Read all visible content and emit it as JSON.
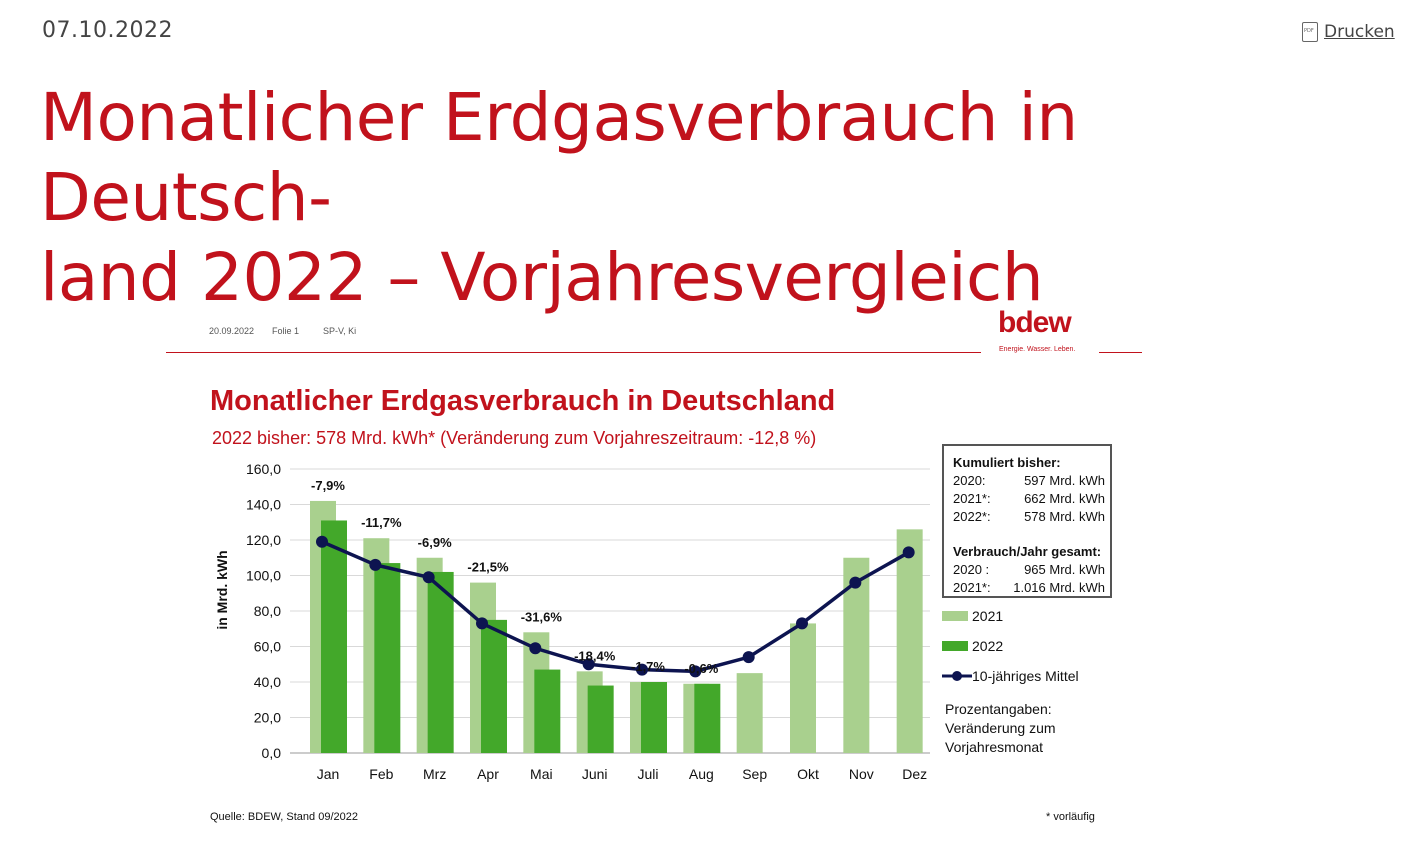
{
  "page": {
    "date": "07.10.2022",
    "print_label": "Drucken",
    "print_icon": "pdf-document-icon",
    "headline": "Monatlicher Erdgasverbrauch in Deutsch-\nland 2022 – Vorjahresvergleich"
  },
  "slide": {
    "date": "20.09.2022",
    "folie": "Folie 1",
    "author": "SP-V, Ki",
    "logo": "bdew",
    "logo_tagline": "Energie. Wasser. Leben.",
    "source": "Quelle: BDEW, Stand 09/2022",
    "footnote": "* vorläufig",
    "note": [
      "Prozentangaben:",
      "Veränderung zum",
      "Vorjahresmonat"
    ],
    "infobox": {
      "heading1": "Kumuliert bisher:",
      "rows1": [
        {
          "label": "2020:",
          "value": "597 Mrd. kWh"
        },
        {
          "label": "2021*:",
          "value": "662 Mrd. kWh"
        },
        {
          "label": "2022*:",
          "value": "578 Mrd. kWh"
        }
      ],
      "heading2": "Verbrauch/Jahr gesamt:",
      "rows2": [
        {
          "label": "2020 :",
          "value": "965 Mrd. kWh"
        },
        {
          "label": "2021*:",
          "value": "1.016 Mrd. kWh"
        }
      ]
    }
  },
  "chart_data": {
    "type": "bar",
    "title": "Monatlicher Erdgasverbrauch in Deutschland",
    "subtitle": "2022 bisher: 578 Mrd. kWh* (Veränderung zum Vorjahreszeitraum: -12,8 %)",
    "ylabel": "in Mrd. kWh",
    "xlabel": "",
    "ylim": [
      0,
      160
    ],
    "yticks": [
      "0,0",
      "20,0",
      "40,0",
      "60,0",
      "80,0",
      "100,0",
      "120,0",
      "140,0",
      "160,0"
    ],
    "grid": true,
    "legend_position": "right",
    "categories": [
      "Jan",
      "Feb",
      "Mrz",
      "Apr",
      "Mai",
      "Juni",
      "Juli",
      "Aug",
      "Sep",
      "Okt",
      "Nov",
      "Dez"
    ],
    "series": [
      {
        "name": "2021",
        "type": "bar",
        "color": "#a9d08e",
        "values": [
          142,
          121,
          110,
          96,
          68,
          46,
          40,
          39,
          45,
          73,
          110,
          126
        ]
      },
      {
        "name": "2022",
        "type": "bar",
        "color": "#43a82a",
        "values": [
          131,
          107,
          102,
          75,
          47,
          38,
          40,
          39,
          null,
          null,
          null,
          null
        ]
      },
      {
        "name": "10-jähriges Mittel",
        "type": "line",
        "color": "#0d1450",
        "values": [
          119,
          106,
          99,
          73,
          59,
          50,
          47,
          46,
          54,
          73,
          96,
          113
        ]
      }
    ],
    "annotations": [
      "-7,9%",
      "-11,7%",
      "-6,9%",
      "-21,5%",
      "-31,6%",
      "-18,4%",
      "-1,7%",
      "-0,6%",
      null,
      null,
      null,
      null
    ]
  }
}
